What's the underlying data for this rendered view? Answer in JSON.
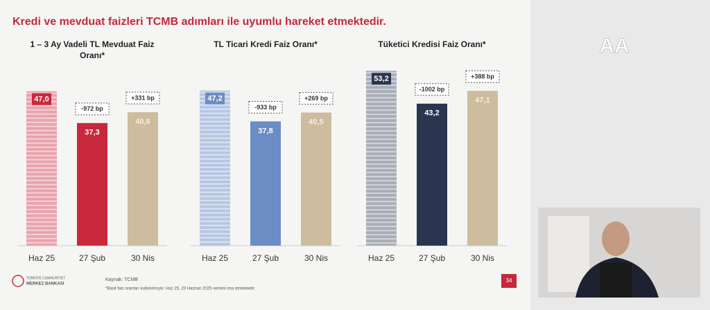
{
  "slide": {
    "title": "Kredi ve mevduat faizleri TCMB adımları ile uyumlu hareket etmektedir.",
    "source": "Kaynak: TCMB",
    "footnote": "*Basit faiz oranları kullanılmıştır. Haz 25, 20 Haziran 2025 verisini ima etmektedir.",
    "logo_line1": "TÜRKİYE CUMHURİYET",
    "logo_line2": "MERKEZ BANKASI",
    "page_number": "34",
    "broadcaster": "AA"
  },
  "chart_data": [
    {
      "type": "bar",
      "title": "1 – 3 Ay Vadeli TL Mevduat Faiz Oranı*",
      "categories": [
        "Haz 25",
        "27 Şub",
        "30 Nis"
      ],
      "values": [
        47.0,
        37.3,
        40.6
      ],
      "value_labels": [
        "47,0",
        "37,3",
        "40,6"
      ],
      "colors": [
        "#e8a3ad",
        "#c8283c",
        "#cdbd9e"
      ],
      "annotations": [
        "-972 bp",
        "+331 bp"
      ]
    },
    {
      "type": "bar",
      "title": "TL Ticari Kredi Faiz Oranı*",
      "categories": [
        "Haz 25",
        "27 Şub",
        "30 Nis"
      ],
      "values": [
        47.2,
        37.8,
        40.5
      ],
      "value_labels": [
        "47,2",
        "37,8",
        "40,5"
      ],
      "colors": [
        "#b7c6e2",
        "#6b8cc4",
        "#cdbd9e"
      ],
      "annotations": [
        "-933 bp",
        "+269 bp"
      ]
    },
    {
      "type": "bar",
      "title": "Tüketici Kredisi Faiz Oranı*",
      "categories": [
        "Haz 25",
        "27 Şub",
        "30 Nis"
      ],
      "values": [
        53.2,
        43.2,
        47.1
      ],
      "value_labels": [
        "53,2",
        "43,2",
        "47,1"
      ],
      "colors": [
        "#a9adb6",
        "#2a3550",
        "#cdbd9e"
      ],
      "annotations": [
        "-1002 bp",
        "+388 bp"
      ]
    }
  ]
}
